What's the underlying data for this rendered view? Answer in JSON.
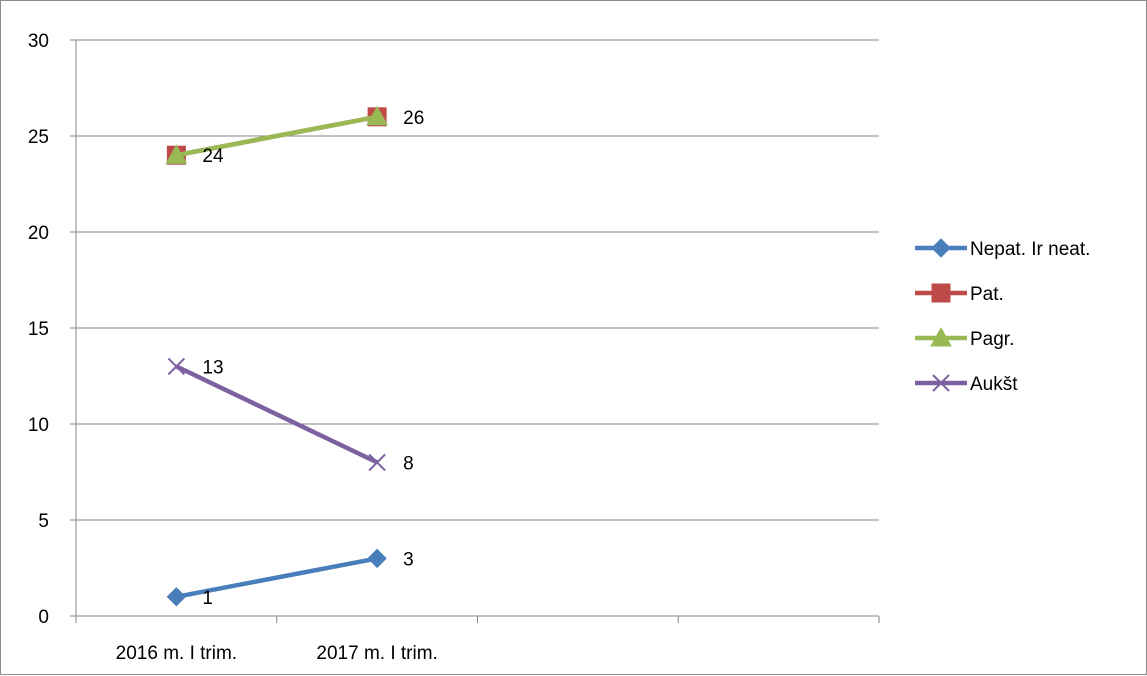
{
  "chart_data": {
    "type": "line",
    "categories": [
      "2016 m. I trim.",
      "2017 m. I trim."
    ],
    "slots": 4,
    "ylim": [
      0,
      30
    ],
    "yticks": [
      "0",
      "5",
      "10",
      "15",
      "20",
      "25",
      "30"
    ],
    "grid": true,
    "legend_position": "right",
    "series": [
      {
        "name": "Nepat. Ir neat.",
        "values": [
          1,
          3
        ],
        "labels": [
          "1",
          "3"
        ],
        "color": "#4a7ebb",
        "marker": "diamond"
      },
      {
        "name": "Pat.",
        "values": [
          24,
          26
        ],
        "labels": [
          "",
          ""
        ],
        "color": "#be4b48",
        "marker": "square"
      },
      {
        "name": "Pagr.",
        "values": [
          24,
          26
        ],
        "labels": [
          "24",
          "26"
        ],
        "color": "#98b954",
        "marker": "triangle"
      },
      {
        "name": "Aukšt",
        "values": [
          13,
          8
        ],
        "labels": [
          "13",
          "8"
        ],
        "color": "#7d60a0",
        "marker": "x"
      }
    ]
  }
}
